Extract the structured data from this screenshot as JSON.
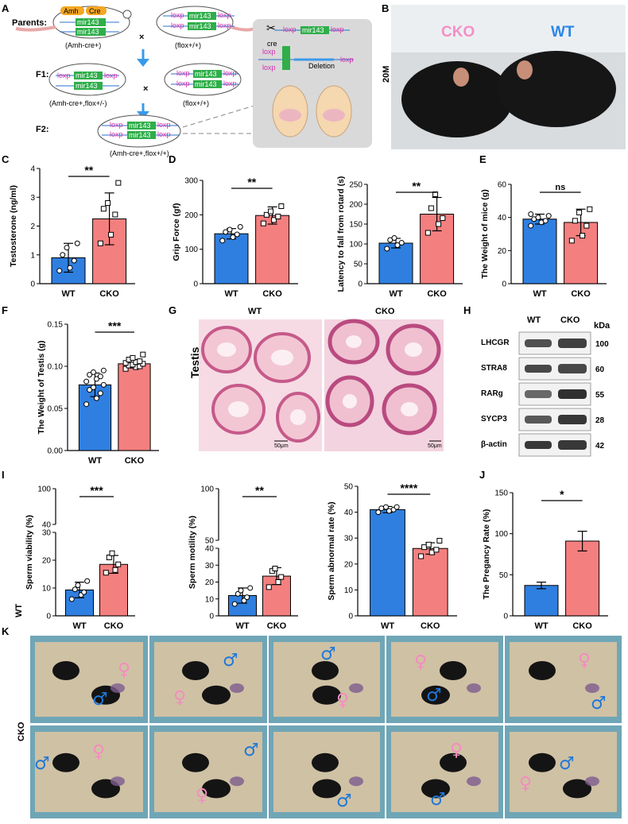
{
  "colors": {
    "wt": "#2f7fe0",
    "cko": "#f47f7f",
    "male": "#1f78d8",
    "female": "#f48cbf",
    "cko_photo": "#f58ec8",
    "wt_photo": "#2a86e8"
  },
  "panel_a": {
    "label": "A",
    "rows": [
      "Parents:",
      "F1:",
      "F2:"
    ],
    "parent_left_genes": [
      "Amh",
      "Cre",
      "mir143",
      "mir143"
    ],
    "parent_left_caption": "(Amh-cre+)",
    "parent_right_genes": [
      "loxp",
      "mir143",
      "loxp",
      "loxp",
      "mir143",
      "loxp"
    ],
    "parent_right_caption": "(flox+/+)",
    "cross_symbol": "×",
    "f1_left_genes": [
      "loxp",
      "mir143",
      "loxp",
      "mir143"
    ],
    "f1_left_caption": "(Amh-cre+,flox+/-)",
    "f1_right_genes": [
      "loxp",
      "mir143",
      "loxp",
      "loxp",
      "mir143",
      "loxp"
    ],
    "f1_right_caption": "(flox+/+)",
    "f2_genes": [
      "loxp",
      "mir143",
      "loxp",
      "loxp",
      "mir143",
      "loxp"
    ],
    "f2_caption": "(Amh-cre+,flox+/+)",
    "inset_cre": "cre",
    "inset_genes": [
      "loxp",
      "mir143",
      "loxp",
      "loxp",
      "mir143",
      "loxp"
    ],
    "inset_deletion": "Deletion",
    "inset_loxp_after": "loxp"
  },
  "panel_b": {
    "label": "B",
    "age": "20M",
    "cko": "CKO",
    "wt": "WT"
  },
  "panel_c": {
    "label": "C"
  },
  "panel_d": {
    "label": "D"
  },
  "panel_e": {
    "label": "E"
  },
  "panel_f": {
    "label": "F"
  },
  "panel_g": {
    "label": "G",
    "row_label": "Testis",
    "col_wt": "WT",
    "col_cko": "CKO",
    "scale_left": "50μm",
    "scale_right": "50μm"
  },
  "panel_h": {
    "label": "H",
    "col_wt": "WT",
    "col_cko": "CKO",
    "kda_header": "kDa",
    "bands": [
      {
        "protein": "LHCGR",
        "kda": "100",
        "wt_intensity": 0.75,
        "cko_intensity": 0.85
      },
      {
        "protein": "STRA8",
        "kda": "60",
        "wt_intensity": 0.8,
        "cko_intensity": 0.8
      },
      {
        "protein": "RARg",
        "kda": "55",
        "wt_intensity": 0.6,
        "cko_intensity": 0.95
      },
      {
        "protein": "SYCP3",
        "kda": "28",
        "wt_intensity": 0.7,
        "cko_intensity": 0.9
      },
      {
        "protein": "β-actin",
        "kda": "42",
        "wt_intensity": 0.9,
        "cko_intensity": 0.9
      }
    ]
  },
  "panel_i": {
    "label": "I"
  },
  "panel_j": {
    "label": "J"
  },
  "panel_k": {
    "label": "K",
    "row_wt": "WT",
    "row_cko": "CKO",
    "male_symbol": "♂",
    "female_symbol": "♀"
  },
  "chart_data": [
    {
      "id": "C",
      "type": "bar",
      "categories": [
        "WT",
        "CKO"
      ],
      "values": [
        0.9,
        2.25
      ],
      "errors": [
        0.5,
        0.9
      ],
      "points": [
        [
          0.45,
          0.55,
          0.8,
          1.0,
          1.25,
          1.4
        ],
        [
          1.4,
          1.7,
          2.4,
          2.6,
          2.8,
          3.5
        ]
      ],
      "ylabel": "Testosterone (ng/ml)",
      "ylim": [
        0,
        4
      ],
      "yticks": [
        0,
        1,
        2,
        3,
        4
      ],
      "yticklabels": [
        "0",
        "1",
        "2",
        "3",
        "4"
      ],
      "significance": "**"
    },
    {
      "id": "D1",
      "type": "bar",
      "categories": [
        "WT",
        "CKO"
      ],
      "values": [
        145,
        198
      ],
      "errors": [
        15,
        25
      ],
      "points": [
        [
          125,
          135,
          143,
          150,
          157,
          165
        ],
        [
          175,
          185,
          195,
          200,
          210,
          225
        ]
      ],
      "ylabel": "Grip Force (gf)",
      "ylim": [
        0,
        300
      ],
      "yticks": [
        0,
        100,
        200,
        300
      ],
      "yticklabels": [
        "0",
        "100",
        "200",
        "300"
      ],
      "significance": "**"
    },
    {
      "id": "D2",
      "type": "bar",
      "categories": [
        "WT",
        "CKO"
      ],
      "values": [
        102,
        175
      ],
      "errors": [
        12,
        42
      ],
      "points": [
        [
          88,
          97,
          103,
          110,
          115
        ],
        [
          128,
          150,
          165,
          190,
          225
        ]
      ],
      "ylabel": "Latency  to fall from rotard (s)",
      "ylim": [
        0,
        250
      ],
      "yticks": [
        0,
        50,
        100,
        150,
        200,
        250
      ],
      "yticklabels": [
        "0",
        "50",
        "100",
        "150",
        "200",
        "250"
      ],
      "significance": "**"
    },
    {
      "id": "E",
      "type": "bar",
      "categories": [
        "WT",
        "CKO"
      ],
      "values": [
        39,
        37
      ],
      "errors": [
        3,
        8
      ],
      "points": [
        [
          35,
          37,
          38,
          39,
          40,
          41,
          42
        ],
        [
          26,
          29,
          35,
          38,
          43,
          45
        ]
      ],
      "ylabel": "The Weight of mice (g)",
      "ylim": [
        0,
        60
      ],
      "yticks": [
        0,
        20,
        40,
        60
      ],
      "yticklabels": [
        "0",
        "20",
        "40",
        "60"
      ],
      "significance": "ns"
    },
    {
      "id": "F",
      "type": "bar",
      "categories": [
        "WT",
        "CKO"
      ],
      "values": [
        0.078,
        0.103
      ],
      "errors": [
        0.014,
        0.005
      ],
      "points": [
        [
          0.055,
          0.062,
          0.068,
          0.072,
          0.075,
          0.078,
          0.082,
          0.085,
          0.088,
          0.09,
          0.093,
          0.095
        ],
        [
          0.097,
          0.099,
          0.1,
          0.101,
          0.102,
          0.103,
          0.104,
          0.105,
          0.106,
          0.108,
          0.11,
          0.114
        ]
      ],
      "ylabel": "The Weight of Testis (g)",
      "ylim": [
        0,
        0.15
      ],
      "yticks": [
        0,
        0.05,
        0.1,
        0.15
      ],
      "yticklabels": [
        "0.00",
        "0.05",
        "0.10",
        "0.15"
      ],
      "significance": "***"
    },
    {
      "id": "I1",
      "type": "bar",
      "categories": [
        "WT",
        "CKO"
      ],
      "values": [
        9.3,
        18.5
      ],
      "errors": [
        2.8,
        3.2
      ],
      "points": [
        [
          6,
          7.5,
          8.5,
          9.5,
          11,
          12.5
        ],
        [
          15.5,
          16.5,
          18.5,
          21,
          22.5
        ]
      ],
      "ylabel": "Sperm  viability (%)",
      "ylim": [
        0,
        30
      ],
      "axis_break": {
        "upper": [
          40,
          100
        ]
      },
      "yticks": [
        0,
        10,
        20,
        30
      ],
      "yticklabels": [
        "0",
        "10",
        "20",
        "30"
      ],
      "upper_ticklabels": [
        "40",
        "100"
      ],
      "significance": "***"
    },
    {
      "id": "I2",
      "type": "bar",
      "categories": [
        "WT",
        "CKO"
      ],
      "values": [
        12,
        23.5
      ],
      "errors": [
        4.5,
        5
      ],
      "points": [
        [
          7,
          9,
          11,
          13,
          15,
          16.5
        ],
        [
          17,
          20,
          23,
          26.5,
          28
        ]
      ],
      "ylabel": "Sperm  motility (%)",
      "ylim": [
        0,
        40
      ],
      "axis_break": {
        "upper": [
          50,
          100
        ]
      },
      "yticks": [
        0,
        10,
        20,
        30,
        40
      ],
      "yticklabels": [
        "0",
        "10",
        "20",
        "30",
        "40"
      ],
      "upper_ticklabels": [
        "50",
        "100"
      ],
      "significance": "**"
    },
    {
      "id": "I3",
      "type": "bar",
      "categories": [
        "WT",
        "CKO"
      ],
      "values": [
        41,
        26
      ],
      "errors": [
        1.2,
        2.2
      ],
      "points": [
        [
          40,
          40.5,
          41,
          41.5,
          42,
          42
        ],
        [
          23,
          24.5,
          25.5,
          26.5,
          27.5,
          29
        ]
      ],
      "ylabel": "Sperm  abnormal rate (%)",
      "ylim": [
        0,
        50
      ],
      "yticks": [
        0,
        10,
        20,
        30,
        40,
        50
      ],
      "yticklabels": [
        "0",
        "10",
        "20",
        "30",
        "40",
        "50"
      ],
      "significance": "****"
    },
    {
      "id": "J",
      "type": "bar",
      "categories": [
        "WT",
        "CKO"
      ],
      "values": [
        37,
        91
      ],
      "errors": [
        4,
        12
      ],
      "points": [
        [],
        []
      ],
      "ylabel": "The Pregancy Rate (%)",
      "ylim": [
        0,
        150
      ],
      "yticks": [
        0,
        50,
        100,
        150
      ],
      "yticklabels": [
        "0",
        "50",
        "100",
        "150"
      ],
      "significance": "*"
    }
  ]
}
